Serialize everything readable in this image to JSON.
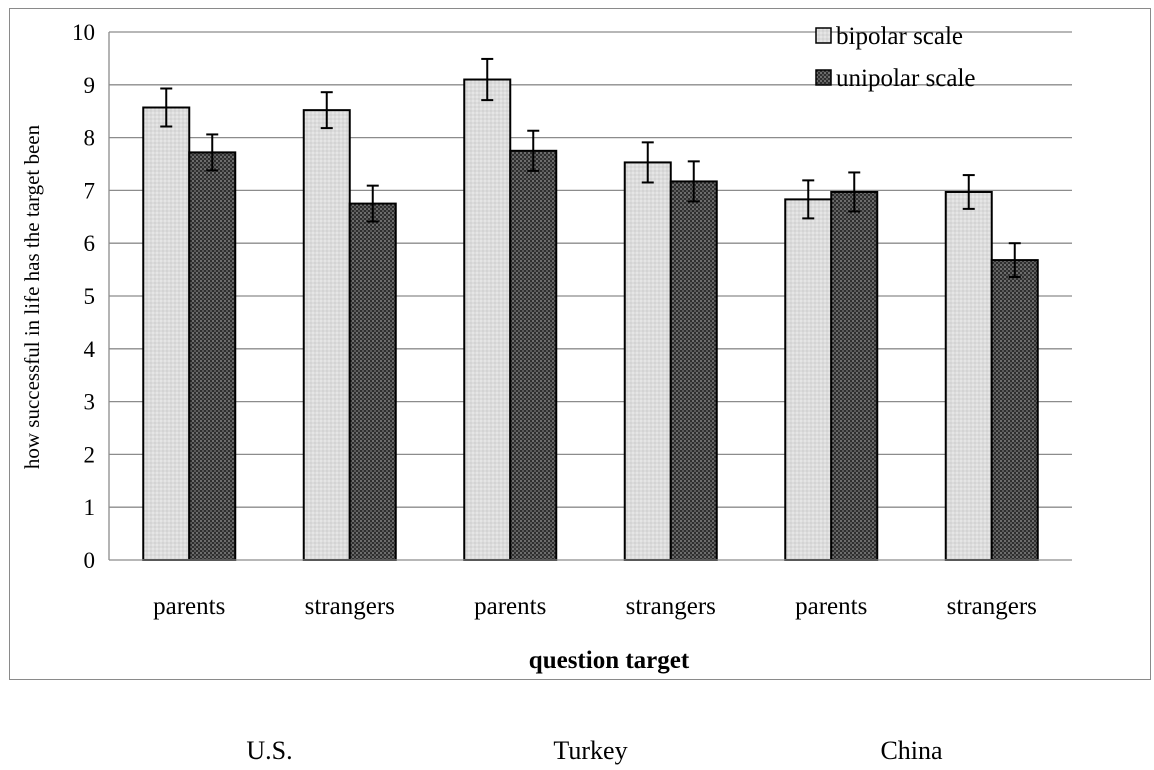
{
  "chart_data": {
    "type": "bar",
    "ylabel": "how successful in life has the target been",
    "xlabel": "question target",
    "ylim": [
      0,
      10
    ],
    "yticks": [
      "0",
      "1",
      "2",
      "3",
      "4",
      "5",
      "6",
      "7",
      "8",
      "9",
      "10"
    ],
    "grid": "horizontal",
    "legend_position": "top-right",
    "categories": [
      "parents",
      "strangers",
      "parents",
      "strangers",
      "parents",
      "strangers"
    ],
    "groups": [
      "U.S.",
      "Turkey",
      "China"
    ],
    "series": [
      {
        "name": "bipolar scale",
        "values": [
          8.57,
          8.52,
          9.1,
          7.53,
          6.83,
          6.97
        ],
        "error": [
          0.36,
          0.34,
          0.39,
          0.38,
          0.36,
          0.32
        ],
        "color": "#d9d9d9"
      },
      {
        "name": "unipolar scale",
        "values": [
          7.72,
          6.75,
          7.75,
          7.17,
          6.97,
          5.68
        ],
        "error": [
          0.34,
          0.34,
          0.38,
          0.38,
          0.37,
          0.32
        ],
        "color": "#4a4a4a"
      }
    ]
  }
}
